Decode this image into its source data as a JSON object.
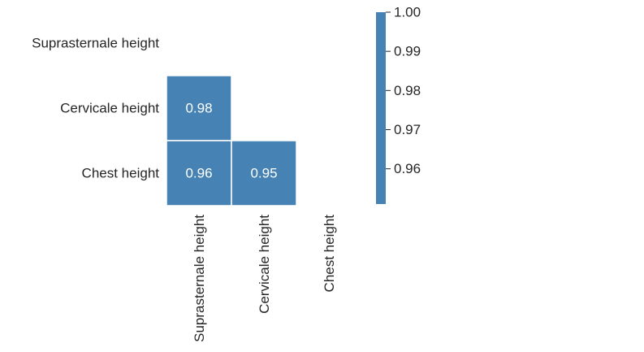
{
  "chart_data": {
    "type": "heatmap",
    "title": "",
    "xlabel": "",
    "ylabel": "",
    "mask": "upper-triangle-including-diagonal",
    "rows": [
      "Suprasternale height",
      "Cervicale height",
      "Chest height"
    ],
    "columns": [
      "Suprasternale height",
      "Cervicale height",
      "Chest height"
    ],
    "cells": [
      {
        "row": 1,
        "col": 0,
        "value": 0.98,
        "label": "0.98"
      },
      {
        "row": 2,
        "col": 0,
        "value": 0.96,
        "label": "0.96"
      },
      {
        "row": 2,
        "col": 1,
        "value": 0.95,
        "label": "0.95"
      }
    ],
    "colorbar": {
      "range": [
        0.951,
        1.0
      ],
      "ticks": [
        {
          "value": 1.0,
          "label": "1.00"
        },
        {
          "value": 0.99,
          "label": "0.99"
        },
        {
          "value": 0.98,
          "label": "0.98"
        },
        {
          "value": 0.97,
          "label": "0.97"
        },
        {
          "value": 0.96,
          "label": "0.96"
        }
      ],
      "placement": "right"
    },
    "colors": {
      "cell_fill": "#4682b4",
      "cell_border": "#ffffff",
      "cell_text": "#ffffff",
      "tick_text": "#262626",
      "background": "#ffffff"
    }
  }
}
